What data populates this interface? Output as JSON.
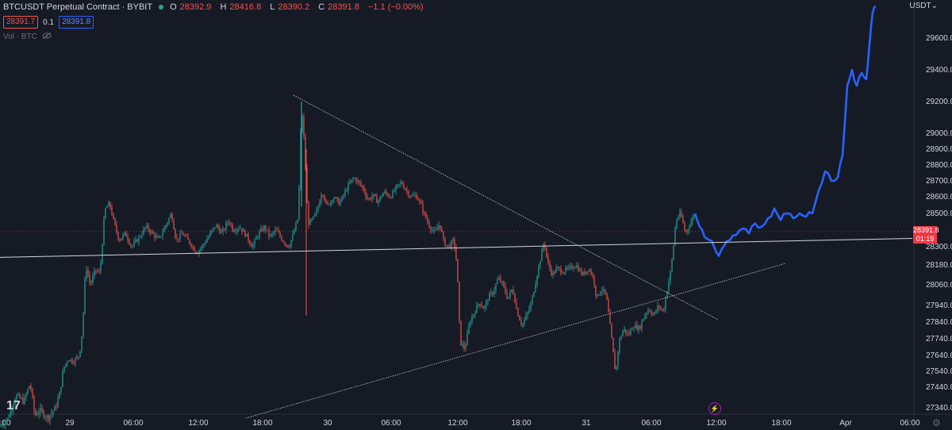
{
  "header": {
    "symbol": "BTCUSDT Perpetual Contract · BYBIT",
    "open_label": "O",
    "open": "28392.9",
    "high_label": "H",
    "high": "28416.8",
    "low_label": "L",
    "low": "28390.2",
    "close_label": "C",
    "close": "28391.8",
    "change": "−1.1 (−0.00%)",
    "sell_price": "28391.7",
    "spread": "0.1",
    "buy_price": "28391.8",
    "volume_label": "Vol · BTC",
    "status_color": "#26a69a"
  },
  "axis": {
    "currency": "USDT",
    "current_price": "28391.8",
    "countdown": "01:19",
    "brand": "17",
    "settings_icon": "gear-icon",
    "flash_icon": "lightning-icon"
  },
  "chart_data": {
    "type": "candlestick",
    "instrument": "BTCUSDT Perpetual Contract · BYBIT",
    "y_ticks": [
      27340,
      27440,
      27540,
      27640,
      27740,
      27840,
      27940,
      28060,
      28180,
      28300,
      28500,
      28600,
      28700,
      28800,
      28900,
      29000,
      29200,
      29400,
      29600
    ],
    "y_tick_labels": [
      "27340.0",
      "27440.0",
      "27540.0",
      "27640.0",
      "27740.0",
      "27840.0",
      "27940.0",
      "28060.0",
      "28180.0",
      "28300.0",
      "28500.0",
      "28600.0",
      "28700.0",
      "28800.0",
      "28900.0",
      "29000.0",
      "29200.0",
      "29400.0",
      "29600.0"
    ],
    "x_ticks": [
      "8:00",
      "29",
      "06:00",
      "12:00",
      "18:00",
      "30",
      "06:00",
      "12:00",
      "18:00",
      "31",
      "06:00",
      "12:00",
      "18:00",
      "Apr",
      "06:00"
    ],
    "colors": {
      "up": "#26a69a",
      "down": "#ef5350",
      "projection": "#2962ff",
      "trendline": "#d1d4dc",
      "current_price": "#f23645"
    },
    "close_path": [
      [
        0,
        27250
      ],
      [
        10,
        27290
      ],
      [
        20,
        27400
      ],
      [
        30,
        27370
      ],
      [
        38,
        27460
      ],
      [
        44,
        27300
      ],
      [
        50,
        27330
      ],
      [
        60,
        27290
      ],
      [
        70,
        27340
      ],
      [
        76,
        27420
      ],
      [
        80,
        27560
      ],
      [
        86,
        27620
      ],
      [
        92,
        27600
      ],
      [
        100,
        27640
      ],
      [
        104,
        27800
      ],
      [
        108,
        28180
      ],
      [
        114,
        28060
      ],
      [
        120,
        28150
      ],
      [
        126,
        28130
      ],
      [
        132,
        28520
      ],
      [
        138,
        28560
      ],
      [
        144,
        28440
      ],
      [
        150,
        28340
      ],
      [
        158,
        28380
      ],
      [
        166,
        28300
      ],
      [
        176,
        28360
      ],
      [
        184,
        28420
      ],
      [
        192,
        28380
      ],
      [
        200,
        28340
      ],
      [
        208,
        28420
      ],
      [
        216,
        28500
      ],
      [
        222,
        28340
      ],
      [
        230,
        28380
      ],
      [
        240,
        28320
      ],
      [
        248,
        28260
      ],
      [
        256,
        28310
      ],
      [
        264,
        28370
      ],
      [
        272,
        28430
      ],
      [
        280,
        28380
      ],
      [
        288,
        28460
      ],
      [
        294,
        28400
      ],
      [
        302,
        28420
      ],
      [
        310,
        28370
      ],
      [
        318,
        28300
      ],
      [
        326,
        28380
      ],
      [
        334,
        28420
      ],
      [
        340,
        28360
      ],
      [
        348,
        28400
      ],
      [
        356,
        28340
      ],
      [
        364,
        28300
      ],
      [
        370,
        28380
      ],
      [
        376,
        28480
      ],
      [
        380,
        29180
      ],
      [
        384,
        28900
      ],
      [
        388,
        28440
      ],
      [
        394,
        28460
      ],
      [
        400,
        28520
      ],
      [
        406,
        28640
      ],
      [
        412,
        28540
      ],
      [
        420,
        28600
      ],
      [
        428,
        28560
      ],
      [
        434,
        28620
      ],
      [
        440,
        28680
      ],
      [
        446,
        28720
      ],
      [
        452,
        28690
      ],
      [
        458,
        28650
      ],
      [
        464,
        28580
      ],
      [
        470,
        28610
      ],
      [
        476,
        28570
      ],
      [
        484,
        28630
      ],
      [
        492,
        28600
      ],
      [
        500,
        28660
      ],
      [
        506,
        28690
      ],
      [
        512,
        28640
      ],
      [
        518,
        28600
      ],
      [
        524,
        28610
      ],
      [
        530,
        28560
      ],
      [
        536,
        28480
      ],
      [
        542,
        28420
      ],
      [
        548,
        28380
      ],
      [
        554,
        28440
      ],
      [
        560,
        28320
      ],
      [
        566,
        28300
      ],
      [
        572,
        28340
      ],
      [
        576,
        28180
      ],
      [
        580,
        27720
      ],
      [
        586,
        27680
      ],
      [
        592,
        27840
      ],
      [
        598,
        27900
      ],
      [
        604,
        27960
      ],
      [
        610,
        27920
      ],
      [
        616,
        27990
      ],
      [
        622,
        28020
      ],
      [
        628,
        28100
      ],
      [
        634,
        28060
      ],
      [
        640,
        27980
      ],
      [
        646,
        28040
      ],
      [
        652,
        27900
      ],
      [
        658,
        27820
      ],
      [
        664,
        27880
      ],
      [
        670,
        27960
      ],
      [
        676,
        28100
      ],
      [
        682,
        28240
      ],
      [
        686,
        28340
      ],
      [
        690,
        28200
      ],
      [
        696,
        28120
      ],
      [
        702,
        28160
      ],
      [
        710,
        28140
      ],
      [
        718,
        28160
      ],
      [
        726,
        28180
      ],
      [
        734,
        28120
      ],
      [
        742,
        28160
      ],
      [
        748,
        28100
      ],
      [
        752,
        27980
      ],
      [
        758,
        28040
      ],
      [
        764,
        28000
      ],
      [
        770,
        27780
      ],
      [
        776,
        27520
      ],
      [
        780,
        27720
      ],
      [
        786,
        27800
      ],
      [
        792,
        27760
      ],
      [
        798,
        27820
      ],
      [
        806,
        27800
      ],
      [
        812,
        27880
      ],
      [
        818,
        27920
      ],
      [
        824,
        27880
      ],
      [
        830,
        27940
      ],
      [
        836,
        27900
      ],
      [
        842,
        28060
      ],
      [
        846,
        28160
      ],
      [
        852,
        28460
      ],
      [
        858,
        28500
      ],
      [
        864,
        28380
      ],
      [
        870,
        28440
      ],
      [
        876,
        28500
      ],
      [
        882,
        28420
      ],
      [
        888,
        28360
      ],
      [
        894,
        28340
      ],
      [
        900,
        28300
      ],
      [
        906,
        28240
      ],
      [
        912,
        28300
      ],
      [
        920,
        28340
      ],
      [
        928,
        28370
      ],
      [
        936,
        28410
      ],
      [
        944,
        28380
      ],
      [
        952,
        28440
      ],
      [
        960,
        28420
      ],
      [
        968,
        28470
      ],
      [
        976,
        28530
      ],
      [
        984,
        28460
      ],
      [
        992,
        28500
      ],
      [
        1000,
        28470
      ],
      [
        1008,
        28500
      ],
      [
        1016,
        28480
      ],
      [
        1024,
        28500
      ],
      [
        1032,
        28640
      ],
      [
        1040,
        28760
      ],
      [
        1048,
        28700
      ],
      [
        1056,
        28720
      ],
      [
        1062,
        28860
      ],
      [
        1068,
        29300
      ],
      [
        1074,
        29400
      ],
      [
        1080,
        29300
      ],
      [
        1086,
        29380
      ],
      [
        1092,
        29340
      ],
      [
        1096,
        29560
      ],
      [
        1100,
        29760
      ],
      [
        1104,
        29800
      ]
    ],
    "projection_start_index": 134,
    "trendlines": [
      {
        "from": [
          0,
          28230
        ],
        "to": [
          1150,
          28350
        ]
      },
      {
        "from": [
          370,
          29240
        ],
        "to": [
          905,
          27855
        ]
      },
      {
        "from": [
          310,
          27290
        ],
        "to": [
          990,
          28190
        ]
      }
    ],
    "current_price_line": 28391.8
  }
}
